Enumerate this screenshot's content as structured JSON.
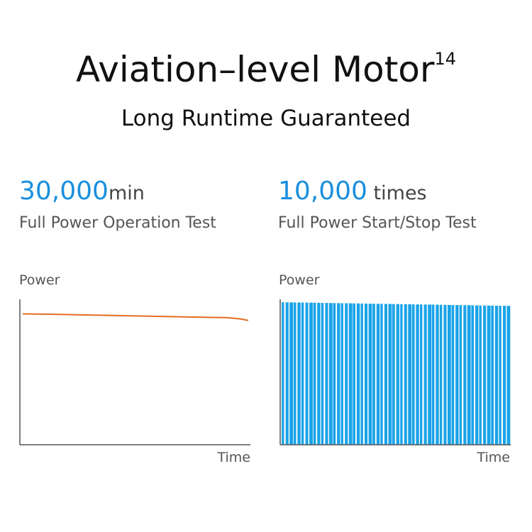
{
  "header": {
    "title": "Aviation–level Motor",
    "title_sup": "14",
    "subtitle": "Long Runtime Guaranteed"
  },
  "colors": {
    "accent": "#1a8fdc",
    "line": "#e06d1f",
    "bars": "#1aa3e8",
    "axis": "#555555"
  },
  "stats": [
    {
      "value": "30,000",
      "unit": "min",
      "label": "Full Power Operation Test"
    },
    {
      "value": "10,000",
      "unit": " times",
      "label": "Full Power Start/Stop Test"
    }
  ],
  "chart_data": [
    {
      "type": "line",
      "ylabel": "Power",
      "xlabel": "Time",
      "ylim": [
        0,
        100
      ],
      "xlim": [
        0,
        100
      ],
      "grid": false,
      "series": [
        {
          "x": [
            0,
            10,
            20,
            30,
            40,
            50,
            60,
            70,
            80,
            90,
            94,
            97,
            100
          ],
          "values": [
            90,
            89.8,
            89.5,
            89.2,
            88.9,
            88.6,
            88.3,
            88.0,
            87.7,
            87.4,
            87.0,
            86.4,
            85.5
          ]
        }
      ]
    },
    {
      "type": "bar",
      "ylabel": "Power",
      "xlabel": "Time",
      "ylim": [
        0,
        100
      ],
      "grid": false,
      "bar_count": 58,
      "start_value": 98,
      "end_value": 95.5
    }
  ]
}
